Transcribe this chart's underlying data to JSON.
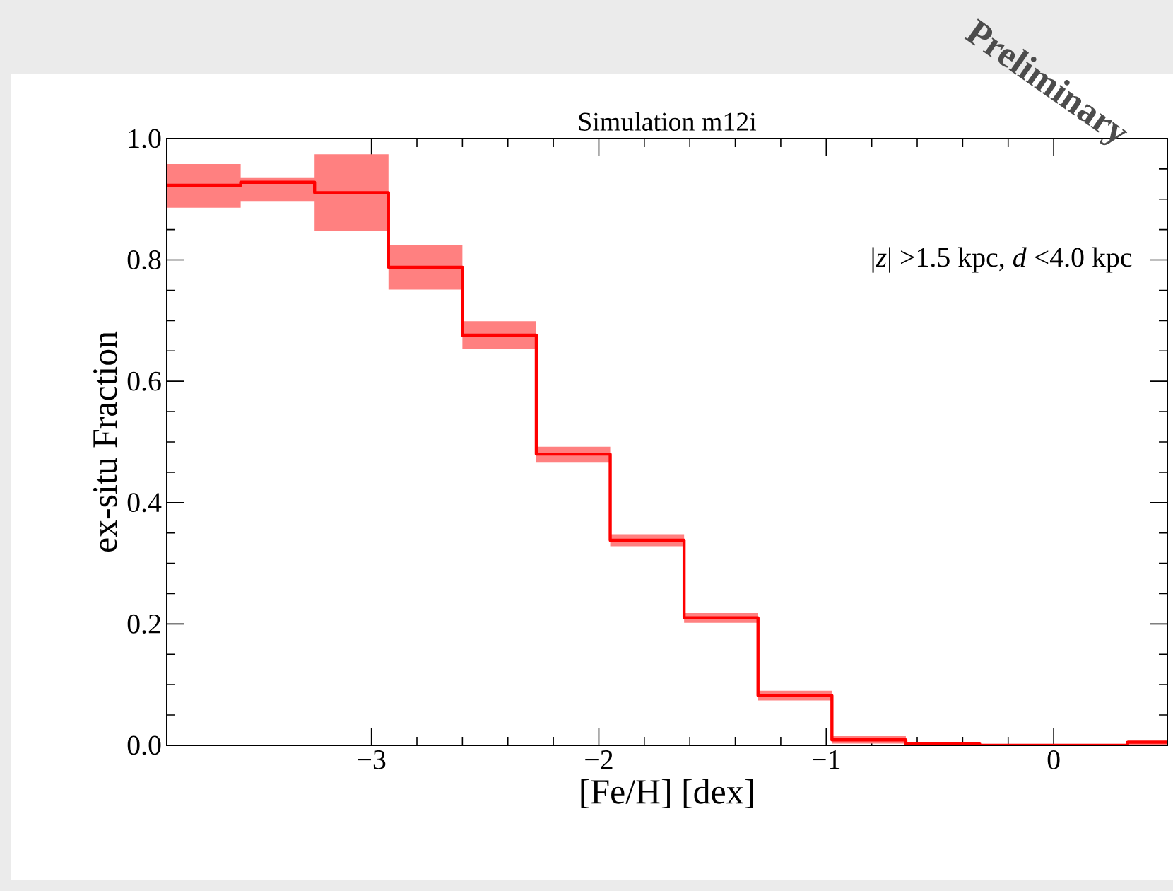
{
  "chart_data": {
    "type": "step",
    "title": "Simulation m12i",
    "xlabel": "[Fe/H] [dex]",
    "ylabel": "ex-situ Fraction",
    "annotations": [
      "|*z*| >1.5 kpc, *d* <4.0 kpc",
      "Preliminary"
    ],
    "x": [
      -3.9,
      -3.575,
      -3.25,
      -2.925,
      -2.6,
      -2.275,
      -1.95,
      -1.625,
      -1.3,
      -0.975,
      -0.65,
      -0.325,
      0,
      0.325,
      0.5
    ],
    "series": [
      {
        "color": "#ff0000",
        "values": [
          0.923,
          0.928,
          0.911,
          0.788,
          0.676,
          0.48,
          0.338,
          0.21,
          0.082,
          0.009,
          0.002,
          0,
          0,
          0.005,
          0.005
        ],
        "lower": [
          0.886,
          0.897,
          0.848,
          0.751,
          0.653,
          0.466,
          0.328,
          0.202,
          0.074,
          0.003,
          0,
          0,
          0,
          0,
          0
        ],
        "upper": [
          0.958,
          0.935,
          0.974,
          0.825,
          0.699,
          0.492,
          0.348,
          0.218,
          0.09,
          0.015,
          0.004,
          0.002,
          0.002,
          0.008,
          0.008
        ]
      }
    ],
    "xlim": [
      -3.9,
      0.5
    ],
    "ylim": [
      0,
      1
    ],
    "xticks": [
      {
        "value": -3,
        "label": "−3"
      },
      {
        "value": -2,
        "label": "−2"
      },
      {
        "value": -1,
        "label": "−1"
      },
      {
        "value": 0,
        "label": "0"
      }
    ],
    "yticks": [
      {
        "value": 0,
        "label": "0.0"
      },
      {
        "value": 0.2,
        "label": "0.2"
      },
      {
        "value": 0.4,
        "label": "0.4"
      },
      {
        "value": 0.6,
        "label": "0.6"
      },
      {
        "value": 0.8,
        "label": "0.8"
      },
      {
        "value": 1,
        "label": "1.0"
      }
    ],
    "grid": false
  }
}
